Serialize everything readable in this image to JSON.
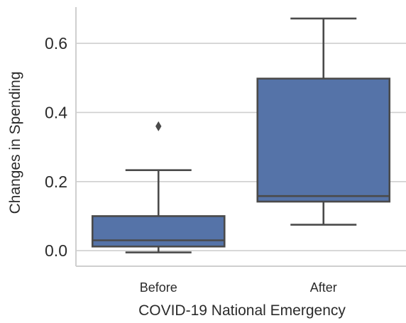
{
  "chart_data": {
    "type": "box",
    "title": "",
    "xlabel": "COVID-19 National Emergency",
    "ylabel": "Changes in Spending",
    "categories": [
      "Before",
      "After"
    ],
    "ylim": [
      -0.045,
      0.705
    ],
    "yticks": [
      0.0,
      0.2,
      0.4,
      0.6
    ],
    "ytick_labels": [
      "0.0",
      "0.2",
      "0.4",
      "0.6"
    ],
    "grid": "horizontal",
    "legend": "none",
    "boxes": [
      {
        "category": "Before",
        "whisker_low": -0.005,
        "q1": 0.012,
        "median": 0.03,
        "q3": 0.1,
        "whisker_high": 0.233,
        "outliers": [
          0.36
        ]
      },
      {
        "category": "After",
        "whisker_low": 0.075,
        "q1": 0.142,
        "median": 0.158,
        "q3": 0.498,
        "whisker_high": 0.672,
        "outliers": []
      }
    ],
    "colors": {
      "box_fill": "#5573a8",
      "line": "#4a4a4a",
      "grid": "#cfcfcf",
      "axis": "#cfcfcf",
      "text": "#2b2b2b"
    }
  }
}
